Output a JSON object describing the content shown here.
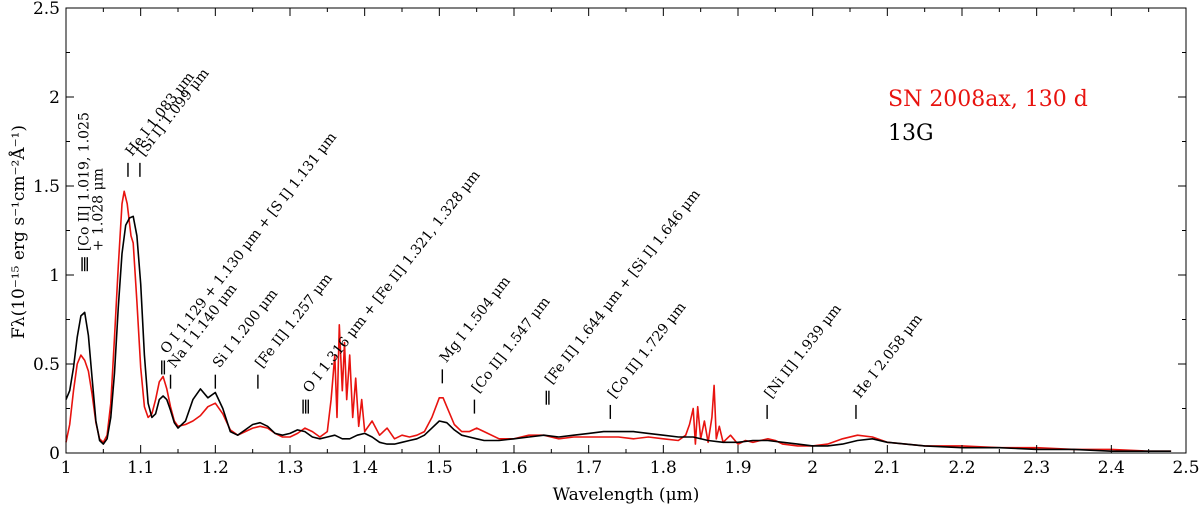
{
  "chart_data": {
    "type": "line",
    "xlabel": "Wavelength (μm)",
    "ylabel": "Fλ(10⁻¹⁵ erg s⁻¹cm⁻²Å⁻¹)",
    "xlim": [
      1.0,
      2.5
    ],
    "ylim": [
      0.0,
      2.5
    ],
    "x_ticks": [
      "1",
      "1.1",
      "1.2",
      "1.3",
      "1.4",
      "1.5",
      "1.6",
      "1.7",
      "1.8",
      "1.9",
      "2",
      "2.1",
      "2.2",
      "2.3",
      "2.4",
      "2.5"
    ],
    "y_ticks": [
      "0",
      "0.5",
      "1",
      "1.5",
      "2",
      "2.5"
    ],
    "grid": false,
    "legend_position": "top-right",
    "series": [
      {
        "name": "SN 2008ax, 130 d",
        "color": "#e8130f",
        "points": [
          [
            1.0,
            0.06
          ],
          [
            1.005,
            0.16
          ],
          [
            1.01,
            0.35
          ],
          [
            1.015,
            0.5
          ],
          [
            1.02,
            0.55
          ],
          [
            1.025,
            0.52
          ],
          [
            1.03,
            0.46
          ],
          [
            1.035,
            0.33
          ],
          [
            1.04,
            0.17
          ],
          [
            1.045,
            0.08
          ],
          [
            1.05,
            0.06
          ],
          [
            1.055,
            0.1
          ],
          [
            1.06,
            0.28
          ],
          [
            1.065,
            0.65
          ],
          [
            1.07,
            1.05
          ],
          [
            1.075,
            1.4
          ],
          [
            1.078,
            1.47
          ],
          [
            1.082,
            1.4
          ],
          [
            1.087,
            1.22
          ],
          [
            1.09,
            1.18
          ],
          [
            1.095,
            0.85
          ],
          [
            1.1,
            0.48
          ],
          [
            1.105,
            0.26
          ],
          [
            1.11,
            0.2
          ],
          [
            1.115,
            0.22
          ],
          [
            1.12,
            0.3
          ],
          [
            1.125,
            0.4
          ],
          [
            1.13,
            0.43
          ],
          [
            1.135,
            0.36
          ],
          [
            1.14,
            0.26
          ],
          [
            1.145,
            0.18
          ],
          [
            1.15,
            0.15
          ],
          [
            1.16,
            0.16
          ],
          [
            1.17,
            0.18
          ],
          [
            1.18,
            0.21
          ],
          [
            1.19,
            0.26
          ],
          [
            1.2,
            0.28
          ],
          [
            1.21,
            0.22
          ],
          [
            1.22,
            0.13
          ],
          [
            1.23,
            0.1
          ],
          [
            1.24,
            0.12
          ],
          [
            1.25,
            0.14
          ],
          [
            1.26,
            0.15
          ],
          [
            1.27,
            0.14
          ],
          [
            1.28,
            0.11
          ],
          [
            1.29,
            0.09
          ],
          [
            1.3,
            0.09
          ],
          [
            1.31,
            0.11
          ],
          [
            1.32,
            0.14
          ],
          [
            1.33,
            0.12
          ],
          [
            1.34,
            0.09
          ],
          [
            1.35,
            0.12
          ],
          [
            1.355,
            0.3
          ],
          [
            1.36,
            0.55
          ],
          [
            1.363,
            0.2
          ],
          [
            1.366,
            0.72
          ],
          [
            1.37,
            0.35
          ],
          [
            1.373,
            0.62
          ],
          [
            1.376,
            0.3
          ],
          [
            1.38,
            0.55
          ],
          [
            1.384,
            0.2
          ],
          [
            1.388,
            0.42
          ],
          [
            1.392,
            0.15
          ],
          [
            1.396,
            0.3
          ],
          [
            1.4,
            0.12
          ],
          [
            1.41,
            0.18
          ],
          [
            1.42,
            0.1
          ],
          [
            1.43,
            0.14
          ],
          [
            1.44,
            0.08
          ],
          [
            1.45,
            0.1
          ],
          [
            1.46,
            0.09
          ],
          [
            1.47,
            0.1
          ],
          [
            1.48,
            0.12
          ],
          [
            1.49,
            0.2
          ],
          [
            1.5,
            0.31
          ],
          [
            1.505,
            0.31
          ],
          [
            1.51,
            0.26
          ],
          [
            1.52,
            0.16
          ],
          [
            1.53,
            0.12
          ],
          [
            1.54,
            0.12
          ],
          [
            1.55,
            0.14
          ],
          [
            1.56,
            0.12
          ],
          [
            1.58,
            0.08
          ],
          [
            1.6,
            0.08
          ],
          [
            1.62,
            0.1
          ],
          [
            1.64,
            0.1
          ],
          [
            1.66,
            0.08
          ],
          [
            1.68,
            0.09
          ],
          [
            1.7,
            0.09
          ],
          [
            1.72,
            0.09
          ],
          [
            1.74,
            0.09
          ],
          [
            1.76,
            0.08
          ],
          [
            1.78,
            0.09
          ],
          [
            1.8,
            0.08
          ],
          [
            1.82,
            0.07
          ],
          [
            1.83,
            0.1
          ],
          [
            1.835,
            0.16
          ],
          [
            1.84,
            0.25
          ],
          [
            1.843,
            0.05
          ],
          [
            1.846,
            0.26
          ],
          [
            1.85,
            0.08
          ],
          [
            1.855,
            0.18
          ],
          [
            1.86,
            0.06
          ],
          [
            1.865,
            0.2
          ],
          [
            1.868,
            0.38
          ],
          [
            1.871,
            0.08
          ],
          [
            1.875,
            0.15
          ],
          [
            1.88,
            0.06
          ],
          [
            1.89,
            0.1
          ],
          [
            1.9,
            0.05
          ],
          [
            1.91,
            0.07
          ],
          [
            1.92,
            0.06
          ],
          [
            1.93,
            0.07
          ],
          [
            1.94,
            0.08
          ],
          [
            1.95,
            0.07
          ],
          [
            1.96,
            0.05
          ],
          [
            1.98,
            0.04
          ],
          [
            2.0,
            0.04
          ],
          [
            2.02,
            0.05
          ],
          [
            2.04,
            0.08
          ],
          [
            2.06,
            0.1
          ],
          [
            2.08,
            0.09
          ],
          [
            2.1,
            0.06
          ],
          [
            2.15,
            0.04
          ],
          [
            2.2,
            0.04
          ],
          [
            2.25,
            0.03
          ],
          [
            2.3,
            0.03
          ],
          [
            2.35,
            0.02
          ],
          [
            2.4,
            0.02
          ],
          [
            2.45,
            0.01
          ],
          [
            2.48,
            0.01
          ]
        ]
      },
      {
        "name": "13G",
        "color": "#000000",
        "points": [
          [
            1.0,
            0.3
          ],
          [
            1.005,
            0.35
          ],
          [
            1.01,
            0.48
          ],
          [
            1.015,
            0.65
          ],
          [
            1.02,
            0.77
          ],
          [
            1.025,
            0.79
          ],
          [
            1.03,
            0.66
          ],
          [
            1.035,
            0.42
          ],
          [
            1.04,
            0.18
          ],
          [
            1.045,
            0.07
          ],
          [
            1.05,
            0.05
          ],
          [
            1.055,
            0.08
          ],
          [
            1.06,
            0.2
          ],
          [
            1.065,
            0.45
          ],
          [
            1.07,
            0.82
          ],
          [
            1.075,
            1.12
          ],
          [
            1.08,
            1.28
          ],
          [
            1.085,
            1.32
          ],
          [
            1.09,
            1.33
          ],
          [
            1.095,
            1.22
          ],
          [
            1.1,
            0.95
          ],
          [
            1.105,
            0.55
          ],
          [
            1.11,
            0.28
          ],
          [
            1.115,
            0.2
          ],
          [
            1.12,
            0.22
          ],
          [
            1.125,
            0.3
          ],
          [
            1.13,
            0.32
          ],
          [
            1.135,
            0.3
          ],
          [
            1.14,
            0.24
          ],
          [
            1.145,
            0.17
          ],
          [
            1.15,
            0.14
          ],
          [
            1.16,
            0.18
          ],
          [
            1.17,
            0.3
          ],
          [
            1.18,
            0.36
          ],
          [
            1.19,
            0.31
          ],
          [
            1.2,
            0.34
          ],
          [
            1.21,
            0.25
          ],
          [
            1.22,
            0.12
          ],
          [
            1.23,
            0.1
          ],
          [
            1.24,
            0.13
          ],
          [
            1.25,
            0.16
          ],
          [
            1.26,
            0.17
          ],
          [
            1.27,
            0.15
          ],
          [
            1.28,
            0.11
          ],
          [
            1.29,
            0.1
          ],
          [
            1.3,
            0.11
          ],
          [
            1.31,
            0.13
          ],
          [
            1.32,
            0.12
          ],
          [
            1.33,
            0.09
          ],
          [
            1.34,
            0.08
          ],
          [
            1.35,
            0.09
          ],
          [
            1.36,
            0.1
          ],
          [
            1.37,
            0.08
          ],
          [
            1.38,
            0.08
          ],
          [
            1.39,
            0.1
          ],
          [
            1.4,
            0.11
          ],
          [
            1.41,
            0.09
          ],
          [
            1.42,
            0.06
          ],
          [
            1.43,
            0.05
          ],
          [
            1.44,
            0.05
          ],
          [
            1.45,
            0.06
          ],
          [
            1.46,
            0.07
          ],
          [
            1.47,
            0.08
          ],
          [
            1.48,
            0.1
          ],
          [
            1.49,
            0.14
          ],
          [
            1.5,
            0.18
          ],
          [
            1.51,
            0.17
          ],
          [
            1.52,
            0.13
          ],
          [
            1.53,
            0.1
          ],
          [
            1.54,
            0.09
          ],
          [
            1.55,
            0.08
          ],
          [
            1.56,
            0.07
          ],
          [
            1.58,
            0.07
          ],
          [
            1.6,
            0.08
          ],
          [
            1.62,
            0.09
          ],
          [
            1.64,
            0.1
          ],
          [
            1.66,
            0.09
          ],
          [
            1.68,
            0.1
          ],
          [
            1.7,
            0.11
          ],
          [
            1.72,
            0.12
          ],
          [
            1.74,
            0.12
          ],
          [
            1.76,
            0.12
          ],
          [
            1.78,
            0.11
          ],
          [
            1.8,
            0.1
          ],
          [
            1.82,
            0.09
          ],
          [
            1.84,
            0.09
          ],
          [
            1.86,
            0.07
          ],
          [
            1.88,
            0.06
          ],
          [
            1.9,
            0.06
          ],
          [
            1.92,
            0.07
          ],
          [
            1.94,
            0.07
          ],
          [
            1.96,
            0.06
          ],
          [
            1.98,
            0.05
          ],
          [
            2.0,
            0.04
          ],
          [
            2.02,
            0.04
          ],
          [
            2.04,
            0.05
          ],
          [
            2.06,
            0.07
          ],
          [
            2.08,
            0.08
          ],
          [
            2.1,
            0.06
          ],
          [
            2.15,
            0.04
          ],
          [
            2.2,
            0.03
          ],
          [
            2.25,
            0.03
          ],
          [
            2.3,
            0.02
          ],
          [
            2.35,
            0.02
          ],
          [
            2.4,
            0.01
          ],
          [
            2.45,
            0.01
          ],
          [
            2.48,
            0.01
          ]
        ]
      }
    ],
    "line_ids": [
      {
        "text": "[Co II] 1.019, 1.025",
        "text2": "+ 1.028 μm",
        "wavelength": 1.025,
        "level": 1.1,
        "ticks": 3
      },
      {
        "text": "He I 1.083 μm",
        "wavelength": 1.083,
        "level": 1.63,
        "ticks": 1
      },
      {
        "text": "[Si I] 1.099 μm",
        "wavelength": 1.099,
        "level": 1.63,
        "ticks": 1
      },
      {
        "text": "O I 1.129 + 1.130 μm + [S I] 1.131 μm",
        "wavelength": 1.13,
        "level": 0.52,
        "ticks": 2
      },
      {
        "text": "Na I 1.140 μm",
        "wavelength": 1.14,
        "level": 0.44,
        "ticks": 1
      },
      {
        "text": "Si I 1.200 μm",
        "wavelength": 1.2,
        "level": 0.44,
        "ticks": 1
      },
      {
        "text": "[Fe II] 1.257 μm",
        "wavelength": 1.257,
        "level": 0.44,
        "ticks": 1
      },
      {
        "text": "O I 1.316 μm + [Fe II] 1.321, 1.328 μm",
        "wavelength": 1.321,
        "level": 0.3,
        "ticks": 3
      },
      {
        "text": "Mg I 1.504 μm",
        "wavelength": 1.504,
        "level": 0.47,
        "ticks": 1
      },
      {
        "text": "[Co II] 1.547 μm",
        "wavelength": 1.547,
        "level": 0.3,
        "ticks": 1
      },
      {
        "text": "[Fe II] 1.644 μm + [Si I] 1.646 μm",
        "wavelength": 1.645,
        "level": 0.35,
        "ticks": 2
      },
      {
        "text": "[Co II] 1.729 μm",
        "wavelength": 1.729,
        "level": 0.27,
        "ticks": 1
      },
      {
        "text": "[Ni II] 1.939 μm",
        "wavelength": 1.939,
        "level": 0.27,
        "ticks": 1
      },
      {
        "text": "He I 2.058 μm",
        "wavelength": 2.058,
        "level": 0.27,
        "ticks": 1
      }
    ]
  }
}
